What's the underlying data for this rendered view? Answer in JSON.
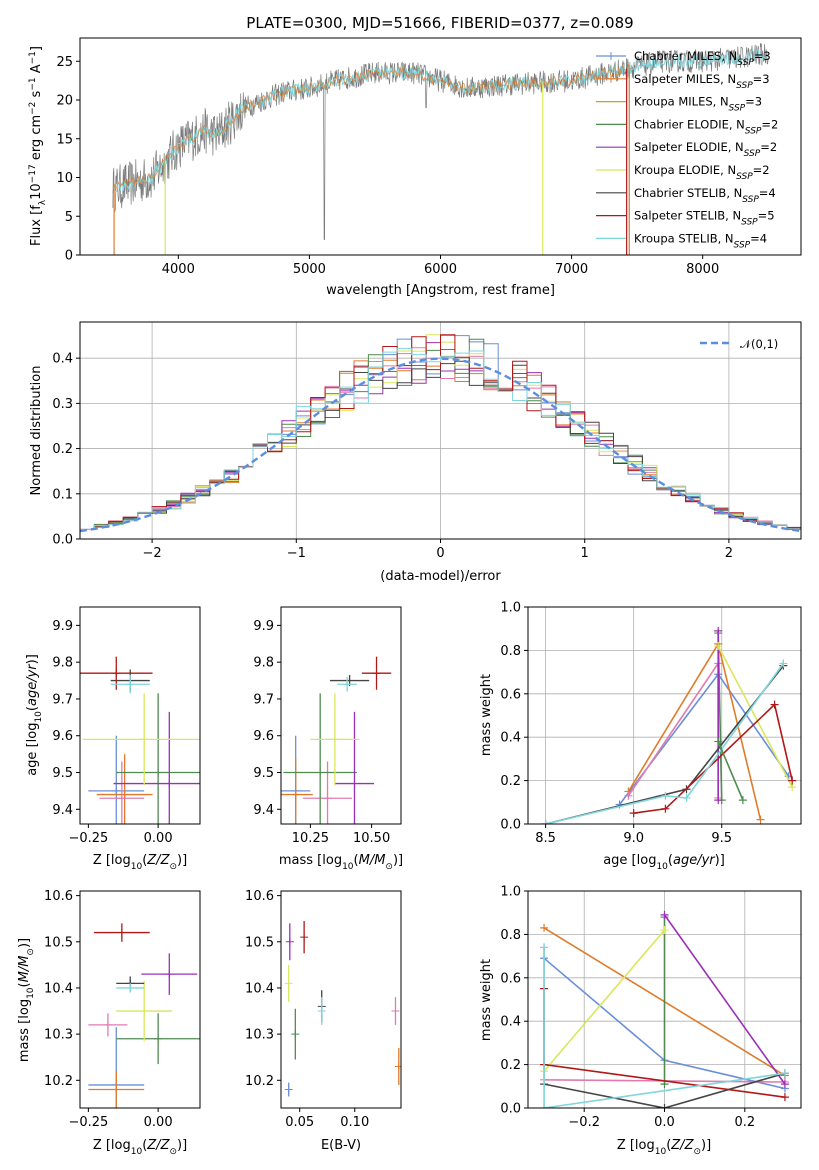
{
  "figure_title": "PLATE=0300, MJD=51666, FIBERID=0377, z=0.089",
  "colors": {
    "cM": "#6a8fd8",
    "sM": "#e07b2a",
    "kM": "#c9a227",
    "cE": "#4f8a4f",
    "sE": "#9b30b6",
    "kE": "#d8e85a",
    "cS": "#454545",
    "sS": "#b01818",
    "kS": "#7ed6dd",
    "pink": "#e07bb0",
    "gray": "#7a7a7a"
  },
  "chart_data": [
    {
      "id": "spectrum",
      "type": "line",
      "xlabel": "wavelength [Angstrom, rest frame]",
      "ylabel": "Flux [f",
      "xlim": [
        3250,
        8750
      ],
      "ylim": [
        0,
        28
      ],
      "xticks": [
        4000,
        5000,
        6000,
        7000,
        8000
      ],
      "yticks": [
        0,
        5,
        10,
        15,
        20,
        25
      ],
      "legend_position": "upper-right",
      "legend": [
        {
          "name": "Chabrier MILES, N",
          "n": "3",
          "color": "cM",
          "marker": "+"
        },
        {
          "name": "Salpeter MILES, N",
          "n": "3",
          "color": "sM",
          "marker": "+"
        },
        {
          "name": "Kroupa MILES, N",
          "n": "3",
          "color": "kM",
          "marker": ""
        },
        {
          "name": "Chabrier ELODIE, N",
          "n": "2",
          "color": "cE",
          "marker": ""
        },
        {
          "name": "Salpeter ELODIE, N",
          "n": "2",
          "color": "sE",
          "marker": ""
        },
        {
          "name": "Kroupa ELODIE, N",
          "n": "2",
          "color": "kE",
          "marker": ""
        },
        {
          "name": "Chabrier STELIB, N",
          "n": "4",
          "color": "cS",
          "marker": ""
        },
        {
          "name": "Salpeter STELIB, N",
          "n": "5",
          "color": "sS",
          "marker": ""
        },
        {
          "name": "Kroupa STELIB, N",
          "n": "4",
          "color": "kS",
          "marker": ""
        }
      ],
      "subscript": "SSP",
      "continuum": [
        [
          3500,
          8.5
        ],
        [
          3800,
          10
        ],
        [
          4000,
          14
        ],
        [
          4200,
          16
        ],
        [
          4300,
          15.5
        ],
        [
          4500,
          19
        ],
        [
          4800,
          21
        ],
        [
          5000,
          21.5
        ],
        [
          5200,
          22.5
        ],
        [
          5500,
          23.5
        ],
        [
          5800,
          23.5
        ],
        [
          6000,
          22.5
        ],
        [
          6200,
          21.5
        ],
        [
          6500,
          22
        ],
        [
          7000,
          22.5
        ],
        [
          7400,
          24
        ],
        [
          7700,
          25
        ],
        [
          8000,
          25
        ],
        [
          8300,
          25.5
        ],
        [
          8500,
          26
        ]
      ]
    },
    {
      "id": "histogram",
      "type": "bar",
      "xlabel": "(data-model)/error",
      "ylabel": "Normed distribution",
      "xlim": [
        -2.5,
        2.5
      ],
      "ylim": [
        0,
        0.48
      ],
      "xticks": [
        -2,
        -1,
        0,
        1,
        2
      ],
      "yticks": [
        0.0,
        0.1,
        0.2,
        0.3,
        0.4
      ],
      "legend": "𝒩(0,1)",
      "legend_position": "upper-right",
      "bins": [
        -2.5,
        2.5,
        50
      ],
      "gaussian": {
        "mean": 0,
        "sigma": 1
      }
    },
    {
      "id": "age_vs_Z",
      "type": "scatter",
      "xlabel": "Z [log",
      "ylabel": "age  [log",
      "xlim": [
        -0.28,
        0.15
      ],
      "ylim": [
        9.36,
        9.95
      ],
      "xticks": [
        -0.25,
        0.0
      ],
      "yticks": [
        9.4,
        9.5,
        9.6,
        9.7,
        9.8,
        9.9
      ],
      "points": [
        {
          "c": "cM",
          "x": -0.15,
          "xe": 0.1,
          "y": 9.45,
          "ye": 0.3
        },
        {
          "c": "sM",
          "x": -0.12,
          "xe": 0.1,
          "y": 9.44,
          "ye": 0.22
        },
        {
          "c": "pink",
          "x": -0.13,
          "xe": 0.08,
          "y": 9.43,
          "ye": 0.2
        },
        {
          "c": "cE",
          "x": 0.0,
          "xe": 0.15,
          "y": 9.5,
          "ye": 0.43
        },
        {
          "c": "sE",
          "x": 0.04,
          "xe": 0.2,
          "y": 9.47,
          "ye": 0.39
        },
        {
          "c": "kE",
          "x": -0.05,
          "xe": 0.22,
          "y": 9.59,
          "ye": 0.25
        },
        {
          "c": "cS",
          "x": -0.1,
          "xe": 0.07,
          "y": 9.75,
          "ye": 0.06
        },
        {
          "c": "sS",
          "x": -0.15,
          "xe": 0.13,
          "y": 9.77,
          "ye": 0.09
        },
        {
          "c": "kS",
          "x": -0.1,
          "xe": 0.07,
          "y": 9.74,
          "ye": 0.05
        }
      ]
    },
    {
      "id": "age_vs_mass",
      "type": "scatter",
      "xlabel": "mass [log",
      "ylabel": "",
      "xlim": [
        10.13,
        10.62
      ],
      "ylim": [
        9.36,
        9.95
      ],
      "xticks": [
        10.25,
        10.5
      ],
      "yticks": [
        9.4,
        9.5,
        9.6,
        9.7,
        9.8,
        9.9
      ],
      "points": [
        {
          "c": "cM",
          "x": 10.19,
          "xe": 0.06,
          "y": 9.45,
          "ye": 0.3
        },
        {
          "c": "sM",
          "x": 10.19,
          "xe": 0.07,
          "y": 9.44,
          "ye": 0.2
        },
        {
          "c": "pink",
          "x": 10.32,
          "xe": 0.1,
          "y": 9.43,
          "ye": 0.2
        },
        {
          "c": "cE",
          "x": 10.29,
          "xe": 0.15,
          "y": 9.5,
          "ye": 0.43
        },
        {
          "c": "sE",
          "x": 10.43,
          "xe": 0.08,
          "y": 9.47,
          "ye": 0.39
        },
        {
          "c": "kE",
          "x": 10.35,
          "xe": 0.1,
          "y": 9.59,
          "ye": 0.25
        },
        {
          "c": "cS",
          "x": 10.41,
          "xe": 0.08,
          "y": 9.75,
          "ye": 0.03
        },
        {
          "c": "sS",
          "x": 10.52,
          "xe": 0.06,
          "y": 9.77,
          "ye": 0.09
        },
        {
          "c": "kS",
          "x": 10.4,
          "xe": 0.04,
          "y": 9.74,
          "ye": 0.04
        }
      ]
    },
    {
      "id": "weight_vs_age",
      "type": "line",
      "xlabel": "age  [log",
      "ylabel": "mass weight",
      "xlim": [
        8.4,
        9.95
      ],
      "ylim": [
        0,
        1.0
      ],
      "xticks": [
        8.5,
        9.0,
        9.5
      ],
      "yticks": [
        0.0,
        0.2,
        0.4,
        0.6,
        0.8,
        1.0
      ],
      "series": [
        {
          "c": "cM",
          "pts": [
            [
              8.92,
              0.09
            ],
            [
              9.48,
              0.69
            ],
            [
              9.88,
              0.22
            ]
          ]
        },
        {
          "c": "sM",
          "pts": [
            [
              8.97,
              0.15
            ],
            [
              9.48,
              0.83
            ],
            [
              9.72,
              0.02
            ]
          ]
        },
        {
          "c": "pink",
          "pts": [
            [
              8.97,
              0.13
            ],
            [
              9.48,
              0.74
            ],
            [
              9.48,
              0.12
            ]
          ]
        },
        {
          "c": "cE",
          "pts": [
            [
              9.48,
              0.88
            ],
            [
              9.5,
              0.11
            ]
          ]
        },
        {
          "c": "sE",
          "pts": [
            [
              9.48,
              0.89
            ],
            [
              9.48,
              0.11
            ]
          ]
        },
        {
          "c": "kE",
          "pts": [
            [
              9.48,
              0.82
            ],
            [
              9.9,
              0.17
            ]
          ]
        },
        {
          "c": "cS",
          "pts": [
            [
              8.5,
              0.0
            ],
            [
              9.3,
              0.16
            ],
            [
              9.85,
              0.73
            ]
          ]
        },
        {
          "c": "sS",
          "pts": [
            [
              9.0,
              0.05
            ],
            [
              9.18,
              0.07
            ],
            [
              9.8,
              0.55
            ],
            [
              9.9,
              0.2
            ]
          ]
        },
        {
          "c": "kS",
          "pts": [
            [
              8.5,
              0.0
            ],
            [
              9.18,
              0.13
            ],
            [
              9.3,
              0.12
            ],
            [
              9.85,
              0.74
            ]
          ]
        },
        {
          "c": "cE",
          "pts": [
            [
              9.48,
              0.38
            ],
            [
              9.62,
              0.11
            ]
          ]
        }
      ]
    },
    {
      "id": "mass_vs_Z",
      "type": "scatter",
      "xlabel": "Z [log",
      "ylabel": "mass [log",
      "xlim": [
        -0.28,
        0.15
      ],
      "ylim": [
        10.14,
        10.61
      ],
      "xticks": [
        -0.25,
        0.0
      ],
      "yticks": [
        10.2,
        10.3,
        10.4,
        10.5,
        10.6
      ],
      "points": [
        {
          "c": "cM",
          "x": -0.15,
          "xe": 0.1,
          "y": 10.19,
          "ye": 0.25
        },
        {
          "c": "sM",
          "x": -0.15,
          "xe": 0.1,
          "y": 10.18,
          "ye": 0.08
        },
        {
          "c": "pink",
          "x": -0.18,
          "xe": 0.07,
          "y": 10.32,
          "ye": 0.05
        },
        {
          "c": "cE",
          "x": 0.0,
          "xe": 0.15,
          "y": 10.29,
          "ye": 0.11
        },
        {
          "c": "sE",
          "x": 0.04,
          "xe": 0.1,
          "y": 10.43,
          "ye": 0.09
        },
        {
          "c": "kE",
          "x": -0.05,
          "xe": 0.1,
          "y": 10.35,
          "ye": 0.13
        },
        {
          "c": "cS",
          "x": -0.1,
          "xe": 0.05,
          "y": 10.41,
          "ye": 0.03
        },
        {
          "c": "sS",
          "x": -0.13,
          "xe": 0.1,
          "y": 10.52,
          "ye": 0.04
        },
        {
          "c": "kS",
          "x": -0.1,
          "xe": 0.05,
          "y": 10.4,
          "ye": 0.02
        }
      ]
    },
    {
      "id": "mass_vs_EBV",
      "type": "scatter",
      "xlabel": "E(B-V)",
      "ylabel": "",
      "xlim": [
        0.033,
        0.142
      ],
      "ylim": [
        10.14,
        10.61
      ],
      "xticks": [
        0.05,
        0.1
      ],
      "yticks": [
        10.2,
        10.3,
        10.4,
        10.5,
        10.6
      ],
      "points": [
        {
          "c": "cM",
          "x": 0.04,
          "xe": 0,
          "y": 10.18,
          "ye": 0.03
        },
        {
          "c": "sM",
          "x": 0.14,
          "xe": 0,
          "y": 10.23,
          "ye": 0.08
        },
        {
          "c": "pink",
          "x": 0.137,
          "xe": 0,
          "y": 10.35,
          "ye": 0.06
        },
        {
          "c": "cE",
          "x": 0.046,
          "xe": 0,
          "y": 10.3,
          "ye": 0.11
        },
        {
          "c": "sE",
          "x": 0.041,
          "xe": 0,
          "y": 10.5,
          "ye": 0.08
        },
        {
          "c": "kE",
          "x": 0.04,
          "xe": 0,
          "y": 10.41,
          "ye": 0.08
        },
        {
          "c": "cS",
          "x": 0.07,
          "xe": 0,
          "y": 10.36,
          "ye": 0.07
        },
        {
          "c": "sS",
          "x": 0.054,
          "xe": 0,
          "y": 10.51,
          "ye": 0.07
        },
        {
          "c": "kS",
          "x": 0.07,
          "xe": 0,
          "y": 10.35,
          "ye": 0.06
        }
      ]
    },
    {
      "id": "weight_vs_Z",
      "type": "line",
      "xlabel": "Z [log",
      "ylabel": "mass weight",
      "xlim": [
        -0.34,
        0.34
      ],
      "ylim": [
        0,
        1.0
      ],
      "xticks": [
        -0.2,
        0.0,
        0.2
      ],
      "yticks": [
        0.0,
        0.2,
        0.4,
        0.6,
        0.8,
        1.0
      ],
      "series": [
        {
          "c": "cM",
          "pts": [
            [
              -0.3,
              0.69
            ],
            [
              0.0,
              0.22
            ],
            [
              0.3,
              0.09
            ]
          ]
        },
        {
          "c": "sM",
          "pts": [
            [
              -0.3,
              0.83
            ],
            [
              0.3,
              0.15
            ]
          ]
        },
        {
          "c": "pink",
          "pts": [
            [
              -0.3,
              0.74
            ],
            [
              -0.3,
              0.13
            ],
            [
              0.3,
              0.12
            ]
          ]
        },
        {
          "c": "cE",
          "pts": [
            [
              0.0,
              0.88
            ],
            [
              0.0,
              0.11
            ]
          ]
        },
        {
          "c": "sE",
          "pts": [
            [
              0.0,
              0.89
            ],
            [
              0.3,
              0.11
            ]
          ]
        },
        {
          "c": "kE",
          "pts": [
            [
              -0.3,
              0.17
            ],
            [
              0.0,
              0.82
            ]
          ]
        },
        {
          "c": "cS",
          "pts": [
            [
              -0.3,
              0.11
            ],
            [
              0.0,
              0.0
            ],
            [
              0.3,
              0.16
            ]
          ]
        },
        {
          "c": "sS",
          "pts": [
            [
              -0.3,
              0.55
            ],
            [
              -0.3,
              0.2
            ],
            [
              0.3,
              0.05
            ]
          ]
        },
        {
          "c": "kS",
          "pts": [
            [
              -0.3,
              0.74
            ],
            [
              -0.3,
              0.0
            ],
            [
              0.3,
              0.16
            ]
          ]
        }
      ]
    }
  ]
}
